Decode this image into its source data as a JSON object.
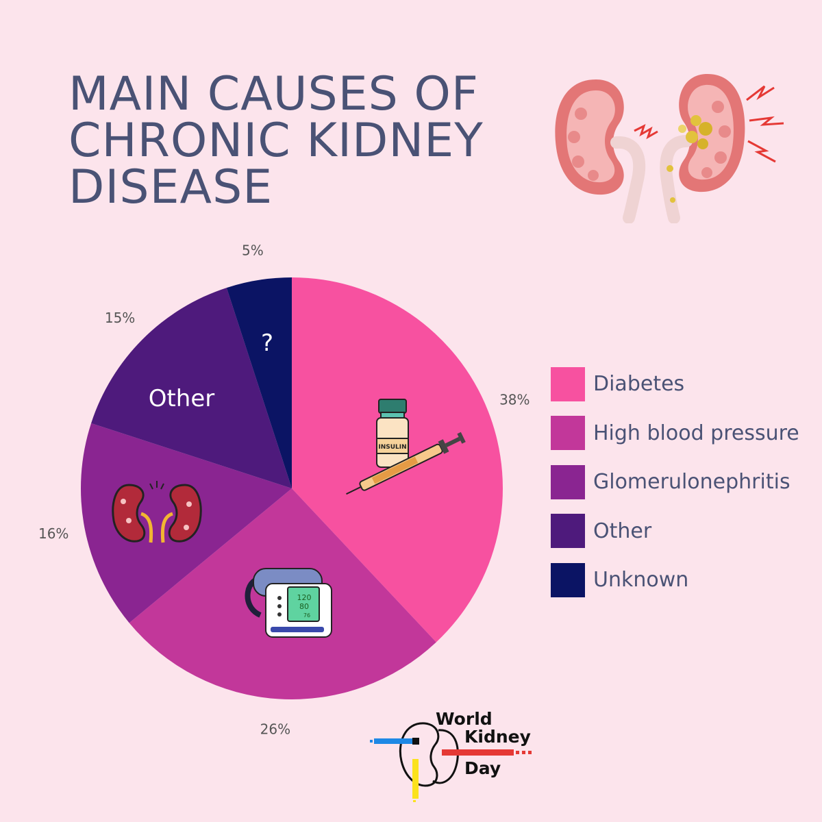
{
  "title_lines": [
    "MAIN CAUSES OF",
    "CHRONIC KIDNEY",
    "DISEASE"
  ],
  "chart_data": {
    "type": "pie",
    "categories": [
      "Diabetes",
      "High blood pressure",
      "Glomerulonephritis",
      "Other",
      "Unknown"
    ],
    "values": [
      38,
      26,
      16,
      15,
      5
    ],
    "value_labels": [
      "38%",
      "26%",
      "16%",
      "15%",
      "5%"
    ],
    "slice_annotations": {
      "Other": "Other",
      "Unknown": "?"
    },
    "colors": [
      "#f751a0",
      "#c2379a",
      "#8a2591",
      "#4e1a7c",
      "#0b1464"
    ],
    "legend_position": "right",
    "start": "top, clockwise"
  },
  "icons": {
    "hero": "kidneys-icon",
    "diabetes": "insulin-syringe-icon",
    "high_blood_pressure": "blood-pressure-monitor-icon",
    "glomerulonephritis": "diseased-kidneys-icon"
  },
  "insulin_label": "INSULIN",
  "bp_monitor_readings": [
    "120",
    "80",
    "76"
  ],
  "logo": {
    "line1": "World",
    "line2": "Kidney",
    "line3": "Day"
  }
}
